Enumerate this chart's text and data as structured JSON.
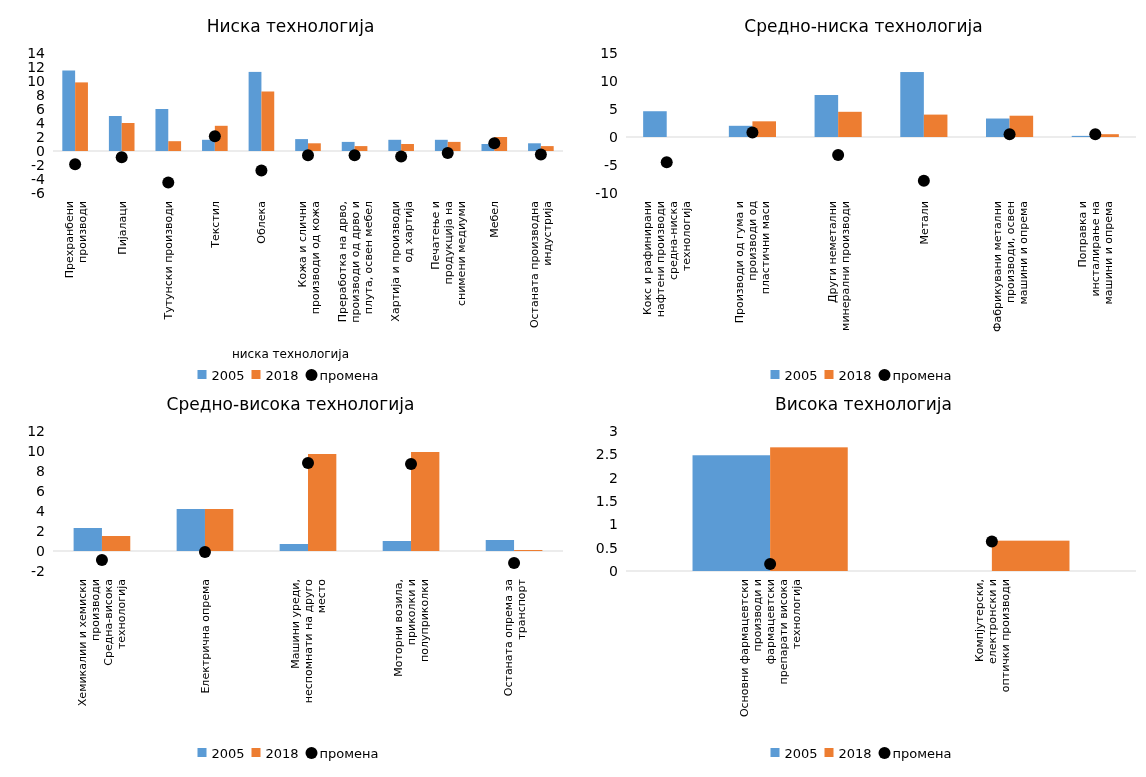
{
  "chart_data": [
    {
      "type": "bar",
      "title": "Ниска технологија",
      "xlabel": "ниска технологија",
      "categories": [
        "Прехранбени производи",
        "Пијалаци",
        "Тутунски производи",
        "Текстил",
        "Облека",
        "Кожа и слични производи од кожа",
        "Преработка на дрво, производи од дрво и плута, освен мебел",
        "Хартија и производи од хартија",
        "Печатење и продукција на снимени медиуми",
        "Мебел",
        "Останата производна индустрија"
      ],
      "series": [
        {
          "name": "2005",
          "color": "#5b9bd5",
          "values": [
            11.5,
            5.0,
            6.0,
            1.6,
            11.3,
            1.7,
            1.3,
            1.6,
            1.6,
            1.0,
            1.1
          ]
        },
        {
          "name": "2018",
          "color": "#ed7d31",
          "values": [
            9.8,
            4.0,
            1.4,
            3.6,
            8.5,
            1.1,
            0.7,
            1.0,
            1.3,
            2.0,
            0.7
          ]
        },
        {
          "name": "промена",
          "type": "scatter",
          "color": "#000000",
          "x": [
            "Прехранбени производи",
            "Пијалаци",
            "Тутунски производи",
            "Текстил",
            "Облека",
            "Кожа и слични производи од кожа",
            "Преработка на дрво, производи од дрво и плута, освен мебел",
            "Хартија и производи од хартија",
            "Печатење и продукција на снимени медиуми",
            "Мебел",
            "Останата производна индустрија"
          ],
          "values": [
            -1.9,
            -0.9,
            -4.5,
            2.1,
            -2.8,
            -0.6,
            -0.6,
            -0.8,
            -0.3,
            1.1,
            -0.5
          ]
        }
      ],
      "ylim": [
        -6,
        14
      ],
      "yticks": [
        -6,
        -4,
        -2,
        0,
        2,
        4,
        6,
        8,
        10,
        12,
        14
      ],
      "legend": "bottom",
      "marker": "circle"
    },
    {
      "type": "bar",
      "title": "Средно-ниска технологија",
      "categories": [
        "Кокс и рафинирани нафтени производи средна-ниска технологија",
        "Производи од гума и производи од пластични маси",
        "Други неметални минерални производи",
        "Метали",
        "Фабрикувани метални производи, освен машини и опрема",
        "Поправка и инсталирање на машини и опрема"
      ],
      "series": [
        {
          "name": "2005",
          "color": "#5b9bd5",
          "values": [
            4.6,
            2.0,
            7.5,
            11.6,
            3.3,
            0.2
          ]
        },
        {
          "name": "2018",
          "color": "#ed7d31",
          "values": [
            null,
            2.8,
            4.5,
            4.0,
            3.8,
            0.5
          ]
        },
        {
          "name": "промена",
          "type": "scatter",
          "color": "#000000",
          "x": [
            "Кокс и рафинирани нафтени производи средна-ниска технологија",
            "Производи од гума и производи од пластични маси",
            "Други неметални минерални производи",
            "Метали",
            "Фабрикувани метални производи, освен машини и опрема",
            "Поправка и инсталирање на машини и опрема"
          ],
          "values": [
            -4.5,
            0.8,
            -3.2,
            -7.8,
            0.5,
            0.5
          ]
        }
      ],
      "ylim": [
        -10,
        15
      ],
      "yticks": [
        -10,
        -5,
        0,
        5,
        10,
        15
      ],
      "legend": "bottom",
      "marker": "circle"
    },
    {
      "type": "bar",
      "title": "Средно-висока технологија",
      "categories": [
        "Хемикалии и хемиски производи Средна-висока технологија",
        "Електрична опрема",
        "Машини уреди, неспомнати на друго место",
        "Моторни возила, приколки и полуприколки",
        "Останата опрема за транспорт"
      ],
      "series": [
        {
          "name": "2005",
          "color": "#5b9bd5",
          "values": [
            2.3,
            4.2,
            0.7,
            1.0,
            1.1
          ]
        },
        {
          "name": "2018",
          "color": "#ed7d31",
          "values": [
            1.5,
            4.2,
            9.7,
            9.9,
            0.1
          ]
        },
        {
          "name": "промена",
          "type": "scatter",
          "color": "#000000",
          "x": [
            "Хемикалии и хемиски производи Средна-висока технологија",
            "Електрична опрема",
            "Машини уреди, неспомнати на друго место",
            "Моторни возила, приколки и полуприколки",
            "Останата опрема за транспорт"
          ],
          "values": [
            -0.9,
            -0.1,
            8.8,
            8.7,
            -1.2
          ]
        }
      ],
      "ylim": [
        -2,
        12
      ],
      "yticks": [
        -2,
        0,
        2,
        4,
        6,
        8,
        10,
        12
      ],
      "legend": "bottom",
      "marker": "circle"
    },
    {
      "type": "bar",
      "title": "Висока технологија",
      "categories": [
        "Основни фармацевтски производи и фармацевтски препарати висока технологија",
        "Компјутерски, електронски и оптички производи"
      ],
      "series": [
        {
          "name": "2005",
          "color": "#5b9bd5",
          "values": [
            2.48,
            null
          ]
        },
        {
          "name": "2018",
          "color": "#ed7d31",
          "values": [
            2.65,
            0.65
          ]
        },
        {
          "name": "промена",
          "type": "scatter",
          "color": "#000000",
          "x": [
            "Основни фармацевтски производи и фармацевтски препарати висока технологија",
            "Компјутерски, електронски и оптички производи"
          ],
          "values": [
            0.15,
            0.63
          ]
        }
      ],
      "ylim": [
        0,
        3
      ],
      "yticks": [
        0,
        0.5,
        1,
        1.5,
        2,
        2.5,
        3
      ],
      "legend": "bottom",
      "marker": "circle"
    }
  ]
}
